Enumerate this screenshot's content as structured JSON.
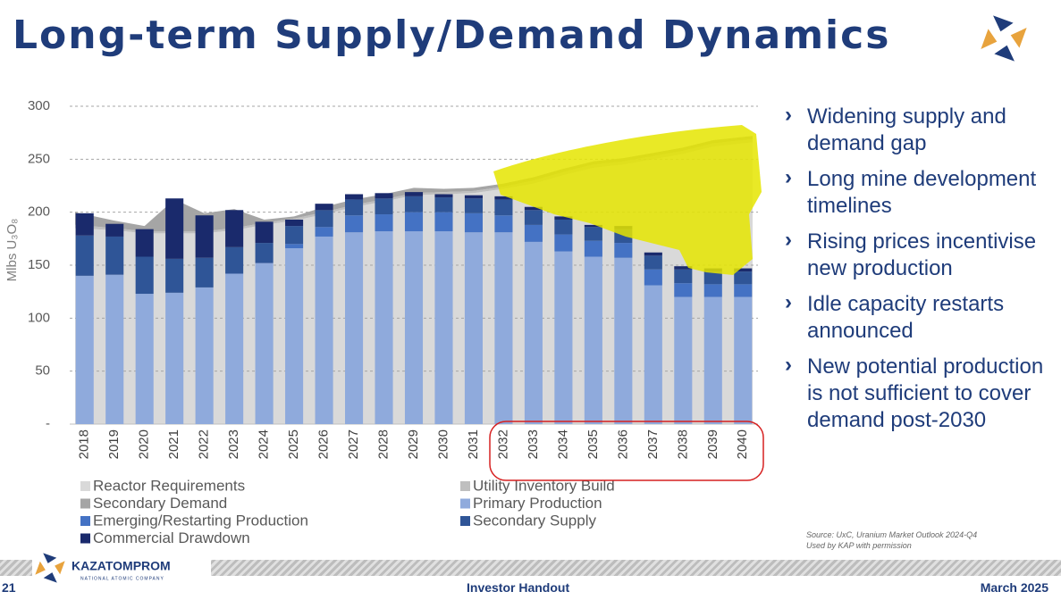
{
  "header": {
    "title": "Long-term Supply/Demand Dynamics"
  },
  "chart_data": {
    "type": "combo",
    "y_label": "Mlbs U₃O₈",
    "categories": [
      "2018",
      "2019",
      "2020",
      "2021",
      "2022",
      "2023",
      "2024",
      "2025",
      "2026",
      "2027",
      "2028",
      "2029",
      "2030",
      "2031",
      "2032",
      "2033",
      "2034",
      "2035",
      "2036",
      "2037",
      "2038",
      "2039",
      "2040"
    ],
    "ylim": [
      0,
      300
    ],
    "yticks": [
      {
        "value": 0,
        "label": "-"
      },
      50,
      100,
      150,
      200,
      250,
      300
    ],
    "grid": true,
    "series": [
      {
        "name": "Reactor Requirements",
        "kind": "area",
        "color": "#d9d9d9",
        "values": [
          185,
          183,
          180,
          180,
          180,
          183,
          188,
          192,
          198,
          205,
          210,
          216,
          217,
          218,
          222,
          227,
          235,
          242,
          245,
          250,
          255,
          262,
          266
        ]
      },
      {
        "name": "Utility Inventory Build",
        "kind": "area",
        "color": "#bfbfbf",
        "values": [
          3,
          2,
          2,
          2,
          2,
          2,
          2,
          2,
          2,
          2,
          2,
          2,
          2,
          2,
          2,
          3,
          3,
          3,
          3,
          3,
          3,
          3,
          3
        ]
      },
      {
        "name": "Secondary Demand",
        "kind": "area",
        "color": "#a5a5a5",
        "values": [
          12,
          7,
          5,
          30,
          17,
          18,
          3,
          2,
          5,
          5,
          5,
          5,
          3,
          3,
          3,
          3,
          3,
          3,
          3,
          3,
          3,
          3,
          3
        ]
      },
      {
        "name": "Primary Production",
        "kind": "bar",
        "color": "#8faadc",
        "values": [
          140,
          141,
          123,
          124,
          129,
          142,
          152,
          166,
          177,
          181,
          182,
          182,
          182,
          181,
          181,
          172,
          163,
          158,
          157,
          131,
          120,
          120,
          120
        ]
      },
      {
        "name": "Emerging/Restarting Production",
        "kind": "bar",
        "color": "#4472c4",
        "values": [
          0,
          0,
          0,
          0,
          0,
          0,
          0,
          4,
          9,
          16,
          16,
          18,
          18,
          18,
          16,
          16,
          16,
          15,
          14,
          15,
          13,
          12,
          12
        ]
      },
      {
        "name": "Secondary Supply",
        "kind": "bar",
        "color": "#2f5597",
        "values": [
          38,
          36,
          35,
          32,
          28,
          25,
          19,
          17,
          16,
          15,
          15,
          15,
          14,
          14,
          15,
          14,
          14,
          13,
          13,
          13,
          13,
          12,
          12
        ]
      },
      {
        "name": "Commercial Drawdown",
        "kind": "bar",
        "color": "#1a2a6c",
        "values": [
          21,
          12,
          26,
          57,
          40,
          35,
          20,
          6,
          6,
          5,
          5,
          4,
          3,
          3,
          3,
          3,
          3,
          2,
          3,
          3,
          3,
          3,
          3
        ]
      }
    ]
  },
  "bullets": [
    "Widening supply and demand gap",
    "Long mine development timelines",
    "Rising prices incentivise new production",
    "Idle capacity restarts announced",
    "New potential production is not sufficient to cover demand post-2030"
  ],
  "source": [
    "Source: UxC, Uranium Market Outlook 2024-Q4",
    "Used by KAP with permission"
  ],
  "footer": {
    "logo": "KAZATOMPROM",
    "logo_sub": "NATIONAL ATOMIC COMPANY",
    "page": "21",
    "center": "Investor Handout",
    "date": "March 2025"
  }
}
